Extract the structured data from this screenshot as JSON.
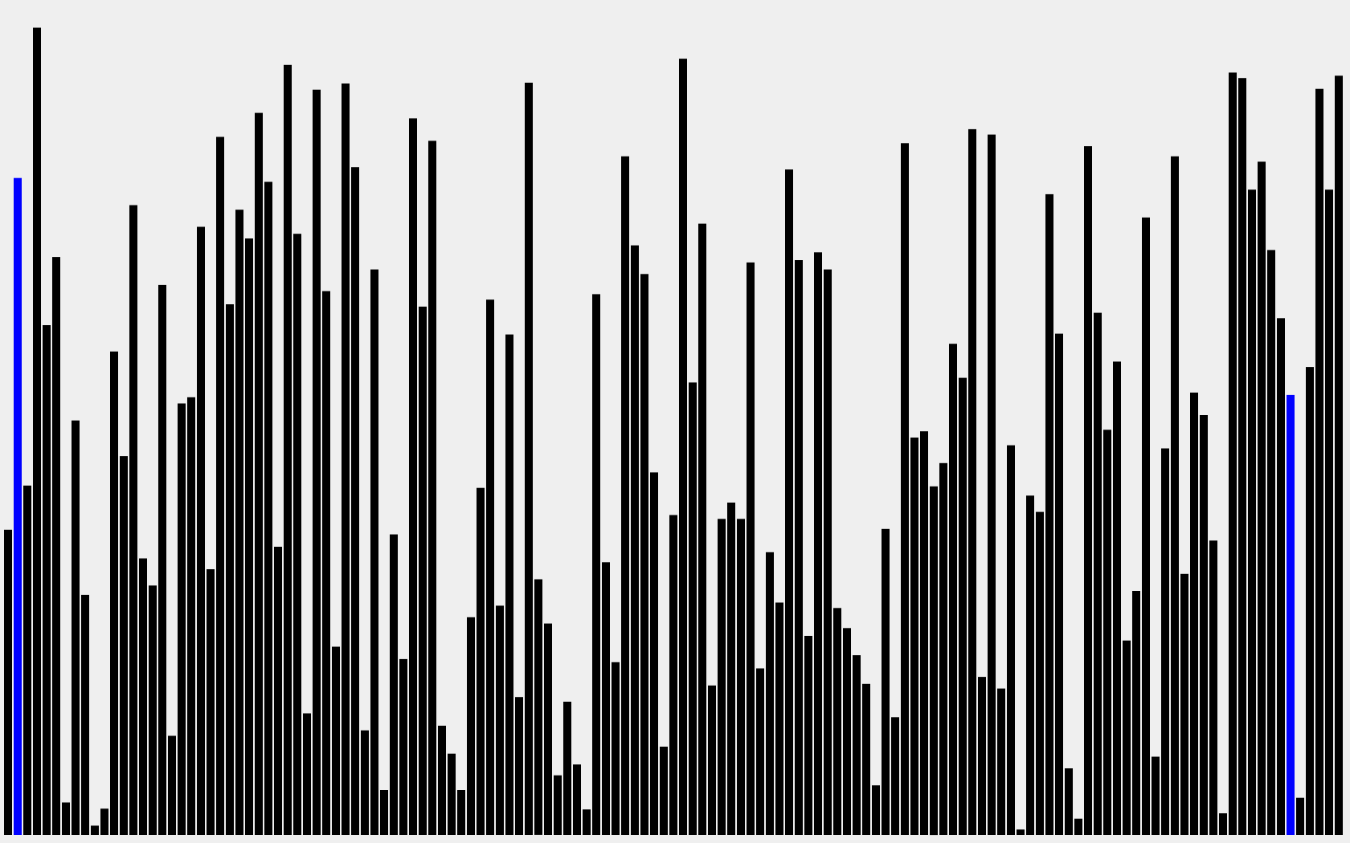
{
  "visualizer": {
    "background_color": "#efefef",
    "bar_color": "#000000",
    "highlight_color": "#0000ff",
    "highlighted_indices": [
      1,
      133
    ],
    "values": [
      394,
      848,
      451,
      1042,
      658,
      746,
      42,
      535,
      310,
      12,
      34,
      624,
      489,
      813,
      357,
      322,
      710,
      128,
      557,
      565,
      785,
      343,
      901,
      685,
      807,
      770,
      932,
      843,
      372,
      994,
      776,
      157,
      962,
      702,
      243,
      970,
      862,
      135,
      730,
      58,
      388,
      227,
      925,
      682,
      896,
      141,
      105,
      58,
      281,
      448,
      691,
      296,
      646,
      178,
      971,
      330,
      273,
      77,
      172,
      91,
      33,
      698,
      352,
      223,
      876,
      761,
      724,
      468,
      114,
      413,
      1002,
      584,
      789,
      193,
      408,
      429,
      408,
      739,
      215,
      365,
      300,
      859,
      742,
      257,
      752,
      730,
      293,
      267,
      232,
      195,
      64,
      395,
      152,
      893,
      513,
      521,
      450,
      480,
      634,
      590,
      911,
      204,
      904,
      189,
      503,
      7,
      438,
      417,
      827,
      647,
      86,
      21,
      889,
      674,
      523,
      611,
      251,
      315,
      797,
      101,
      499,
      876,
      337,
      571,
      542,
      380,
      28,
      984,
      977,
      833,
      869,
      755,
      667,
      568,
      48,
      604,
      963,
      833,
      980
    ]
  }
}
